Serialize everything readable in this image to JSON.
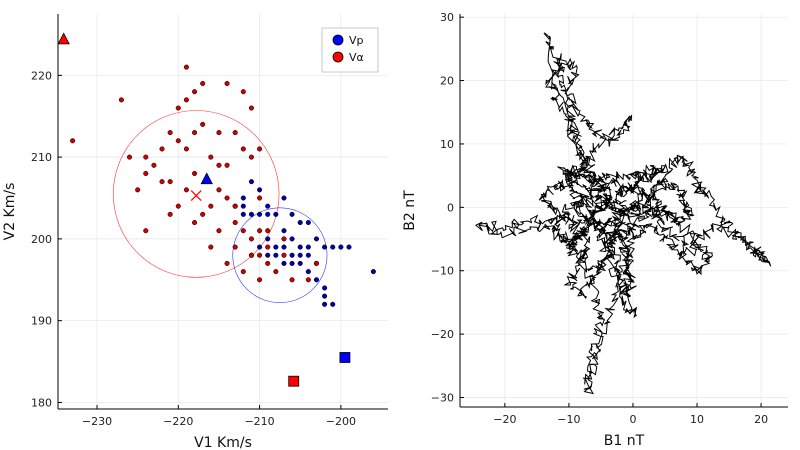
{
  "chart_data": [
    {
      "type": "scatter",
      "xlabel": "V1 Km/s",
      "ylabel": "V2 Km/s",
      "xlim": [
        -234.8,
        -194.2
      ],
      "ylim": [
        179.2,
        227.5
      ],
      "xticks": [
        -230,
        -220,
        -210,
        -200
      ],
      "yticks": [
        180,
        190,
        200,
        210,
        220
      ],
      "xtick_labels": [
        "−230",
        "−220",
        "−210",
        "−200"
      ],
      "ytick_labels": [
        "180",
        "190",
        "200",
        "210",
        "220"
      ],
      "grid": true,
      "legend": {
        "position": "top-right",
        "entries": [
          {
            "label": "Vp",
            "color": "#0000ff"
          },
          {
            "label": "Vα",
            "color": "#ff0000"
          }
        ]
      },
      "series": [
        {
          "name": "Vp",
          "color": "#0000aa",
          "points": [
            [
              -211,
              207
            ],
            [
              -210,
              206
            ],
            [
              -212,
              205
            ],
            [
              -209,
              203
            ],
            [
              -210,
              203
            ],
            [
              -213,
              204
            ],
            [
              -211,
              203
            ],
            [
              -212,
              204
            ],
            [
              -208,
              203
            ],
            [
              -207,
              201
            ],
            [
              -206,
              203
            ],
            [
              -205,
              202
            ],
            [
              -204,
              202
            ],
            [
              -203,
              200
            ],
            [
              -204,
              199
            ],
            [
              -205,
              199
            ],
            [
              -206,
              200
            ],
            [
              -207,
              199
            ],
            [
              -208,
              198
            ],
            [
              -209,
              198
            ],
            [
              -207,
              197
            ],
            [
              -206,
              197
            ],
            [
              -205,
              197
            ],
            [
              -204,
              196
            ],
            [
              -203,
              197
            ],
            [
              -202,
              199
            ],
            [
              -201,
              199
            ],
            [
              -200,
              199
            ],
            [
              -199,
              199
            ],
            [
              -203,
              195
            ],
            [
              -202,
              194
            ],
            [
              -202,
              193
            ],
            [
              -202,
              192
            ],
            [
              -201,
              192
            ],
            [
              -210,
              199
            ],
            [
              -211,
              198
            ],
            [
              -209,
              200
            ],
            [
              -208,
              199
            ],
            [
              -206,
              198
            ],
            [
              -205,
              198
            ],
            [
              -204,
              198
            ],
            [
              -196,
              196
            ],
            [
              -209,
              204
            ],
            [
              -207,
              205
            ],
            [
              -212,
              203
            ]
          ]
        },
        {
          "name": "Vα",
          "color": "#cc0000",
          "points": [
            [
              -219,
              221
            ],
            [
              -217,
              219
            ],
            [
              -218,
              218
            ],
            [
              -219,
              217
            ],
            [
              -220,
              216
            ],
            [
              -214,
              219
            ],
            [
              -212,
              218
            ],
            [
              -211,
              216
            ],
            [
              -227,
              217
            ],
            [
              -233,
              212
            ],
            [
              -217,
              214
            ],
            [
              -218,
              213
            ],
            [
              -215,
              213
            ],
            [
              -213,
              213
            ],
            [
              -221,
              213
            ],
            [
              -220,
              212
            ],
            [
              -219,
              211
            ],
            [
              -222,
              211
            ],
            [
              -224,
              210
            ],
            [
              -226,
              210
            ],
            [
              -223,
              209
            ],
            [
              -222,
              207
            ],
            [
              -221,
              207
            ],
            [
              -218,
              208
            ],
            [
              -216,
              210
            ],
            [
              -215,
              209
            ],
            [
              -214,
              209
            ],
            [
              -212,
              211
            ],
            [
              -211,
              210
            ],
            [
              -210,
              211
            ],
            [
              -224,
              208
            ],
            [
              -225,
              206
            ],
            [
              -219,
              206
            ],
            [
              -216,
              204
            ],
            [
              -217,
              203
            ],
            [
              -215,
              206
            ],
            [
              -214,
              205
            ],
            [
              -213,
              204
            ],
            [
              -210,
              205
            ],
            [
              -218,
              202
            ],
            [
              -215,
              201
            ],
            [
              -212,
              201
            ],
            [
              -211,
              200
            ],
            [
              -210,
              198
            ],
            [
              -209,
              197
            ],
            [
              -210,
              195
            ],
            [
              -212,
              196
            ],
            [
              -211,
              198
            ],
            [
              -214,
              197
            ],
            [
              -213,
              199
            ],
            [
              -208,
              196
            ],
            [
              -207,
              198
            ],
            [
              -209,
              199
            ],
            [
              -210,
              201
            ],
            [
              -213,
              202
            ],
            [
              -216,
              199
            ],
            [
              -224,
              201
            ],
            [
              -220,
              204
            ],
            [
              -221,
              203
            ],
            [
              -206,
              195
            ],
            [
              -203,
              197
            ],
            [
              -207,
              200
            ],
            [
              -209,
              201
            ],
            [
              -204,
              195
            ]
          ]
        }
      ],
      "markers": [
        {
          "label": "mean Vp",
          "shape": "triangle",
          "color": "#0000ff",
          "x": -216.5,
          "y": 207.3
        },
        {
          "label": "mean Vα",
          "shape": "cross",
          "color": "#ff0000",
          "x": -217.8,
          "y": 205.3
        },
        {
          "label": "Vp marker",
          "shape": "square",
          "color": "#0000ff",
          "x": -199.5,
          "y": 185.5
        },
        {
          "label": "Vα marker",
          "shape": "square",
          "color": "#ff0000",
          "x": -205.8,
          "y": 182.6
        },
        {
          "label": "Vα triangle",
          "shape": "triangle",
          "color": "#ff0000",
          "x": -234.1,
          "y": 224.4
        }
      ],
      "circles": [
        {
          "cx": -217.8,
          "cy": 205.5,
          "r": 10.2,
          "color": "#ff0000"
        },
        {
          "cx": -207.5,
          "cy": 198.0,
          "r": 5.8,
          "color": "#0000ff"
        }
      ]
    },
    {
      "type": "line",
      "xlabel": "B1 nT",
      "ylabel": "B2 nT",
      "xlim": [
        -27,
        24.2
      ],
      "ylim": [
        -31.5,
        30.5
      ],
      "xticks": [
        -20,
        -10,
        0,
        10,
        20
      ],
      "yticks": [
        -30,
        -20,
        -10,
        0,
        10,
        20,
        30
      ],
      "xtick_labels": [
        "−20",
        "−10",
        "0",
        "10",
        "20"
      ],
      "ytick_labels": [
        "−30",
        "−20",
        "−10",
        "0",
        "10",
        "20",
        "30"
      ],
      "grid": true,
      "trace": {
        "color": "#000000",
        "waypoints": [
          [
            -1,
            1
          ],
          [
            -5,
            0
          ],
          [
            -9,
            2
          ],
          [
            -10,
            4
          ],
          [
            -9,
            6
          ],
          [
            -11,
            6
          ],
          [
            -8,
            3
          ],
          [
            -5,
            1
          ],
          [
            -7,
            -3
          ],
          [
            -9,
            -5
          ],
          [
            -10,
            -7
          ],
          [
            -6,
            -10
          ],
          [
            -4,
            -8
          ],
          [
            -5,
            -4
          ],
          [
            -2,
            -1
          ],
          [
            -1,
            0
          ],
          [
            1,
            0
          ],
          [
            4,
            2
          ],
          [
            6,
            7
          ],
          [
            8,
            8
          ],
          [
            9,
            6
          ],
          [
            10,
            3
          ],
          [
            12,
            2
          ],
          [
            14,
            -2
          ],
          [
            16,
            -4
          ],
          [
            18,
            -6
          ],
          [
            20,
            -7
          ],
          [
            21,
            -9
          ],
          [
            17,
            -5
          ],
          [
            13,
            -3
          ],
          [
            10,
            -5
          ],
          [
            9,
            -7
          ],
          [
            6,
            -4
          ],
          [
            4,
            -2
          ],
          [
            2,
            0
          ],
          [
            0,
            -1
          ],
          [
            -2,
            -3
          ],
          [
            -4,
            -6
          ],
          [
            -3,
            -10
          ],
          [
            -1,
            -14
          ],
          [
            0,
            -12
          ],
          [
            -1,
            -8
          ],
          [
            -2,
            -4
          ],
          [
            -4,
            -2
          ],
          [
            -8,
            -2
          ],
          [
            -12,
            -2
          ],
          [
            -16,
            -2
          ],
          [
            -20,
            -3
          ],
          [
            -24,
            -3
          ],
          [
            -20,
            -4
          ],
          [
            -15,
            -3
          ],
          [
            -11,
            -4
          ],
          [
            -8,
            -8
          ],
          [
            -6,
            -13
          ],
          [
            -5,
            -18
          ],
          [
            -6,
            -22
          ],
          [
            -7,
            -26
          ],
          [
            -7,
            -29
          ],
          [
            -6,
            -24
          ],
          [
            -4,
            -18
          ],
          [
            -2,
            -12
          ],
          [
            -1,
            -6
          ],
          [
            -2,
            -2
          ],
          [
            -4,
            2
          ],
          [
            -6,
            5
          ],
          [
            -8,
            9
          ],
          [
            -10,
            13
          ],
          [
            -12,
            17
          ],
          [
            -13,
            20
          ],
          [
            -11,
            23
          ],
          [
            -9,
            22
          ],
          [
            -10,
            18
          ],
          [
            -8,
            14
          ],
          [
            -6,
            12
          ],
          [
            -3,
            10
          ],
          [
            0,
            14
          ],
          [
            -3,
            12
          ],
          [
            -6,
            9
          ],
          [
            -8,
            6
          ],
          [
            -10,
            4
          ],
          [
            -12,
            3
          ],
          [
            -14,
            2
          ],
          [
            -13,
            0
          ],
          [
            -11,
            -1
          ],
          [
            -9,
            -3
          ],
          [
            -7,
            -6
          ],
          [
            -8,
            -9
          ],
          [
            -10,
            -12
          ],
          [
            -8,
            -14
          ],
          [
            -6,
            -11
          ],
          [
            -4,
            -7
          ],
          [
            -3,
            -3
          ],
          [
            -1,
            -1
          ],
          [
            1,
            1
          ],
          [
            3,
            3
          ],
          [
            5,
            4
          ],
          [
            7,
            3
          ],
          [
            8,
            1
          ],
          [
            9,
            -1
          ],
          [
            7,
            -2
          ],
          [
            5,
            -1
          ],
          [
            3,
            0
          ],
          [
            1,
            -2
          ],
          [
            -1,
            -4
          ],
          [
            -3,
            -5
          ],
          [
            -5,
            -3
          ],
          [
            -7,
            0
          ],
          [
            -9,
            1
          ],
          [
            -11,
            -1
          ],
          [
            -12,
            -4
          ],
          [
            -10,
            -6
          ],
          [
            -8,
            -4
          ],
          [
            -6,
            -1
          ],
          [
            -4,
            1
          ],
          [
            -2,
            2
          ],
          [
            0,
            3
          ],
          [
            2,
            2
          ],
          [
            4,
            1
          ],
          [
            6,
            -1
          ],
          [
            8,
            -3
          ],
          [
            10,
            -6
          ],
          [
            12,
            -8
          ],
          [
            10,
            -10
          ],
          [
            8,
            -8
          ],
          [
            6,
            -6
          ],
          [
            4,
            -4
          ],
          [
            2,
            -3
          ],
          [
            0,
            -5
          ],
          [
            -1,
            -9
          ],
          [
            -1,
            -11
          ],
          [
            0,
            -17
          ],
          [
            -1,
            -15
          ],
          [
            -2,
            -10
          ],
          [
            -3,
            -6
          ],
          [
            -5,
            -4
          ],
          [
            -7,
            -2
          ],
          [
            -9,
            0
          ],
          [
            -7,
            2
          ],
          [
            -5,
            3
          ],
          [
            -3,
            4
          ],
          [
            -1,
            3
          ],
          [
            1,
            4
          ],
          [
            3,
            5
          ],
          [
            5,
            6
          ],
          [
            3,
            6
          ],
          [
            1,
            5
          ],
          [
            -1,
            5
          ],
          [
            -4,
            5
          ],
          [
            -6,
            4
          ],
          [
            -8,
            5
          ],
          [
            -14,
            28
          ],
          [
            -12,
            24
          ],
          [
            -11,
            20
          ],
          [
            -10,
            16
          ],
          [
            -9,
            12
          ],
          [
            -8,
            8
          ],
          [
            -7,
            5
          ],
          [
            -5,
            2
          ],
          [
            -3,
            0
          ],
          [
            -1,
            -1
          ]
        ]
      }
    }
  ]
}
